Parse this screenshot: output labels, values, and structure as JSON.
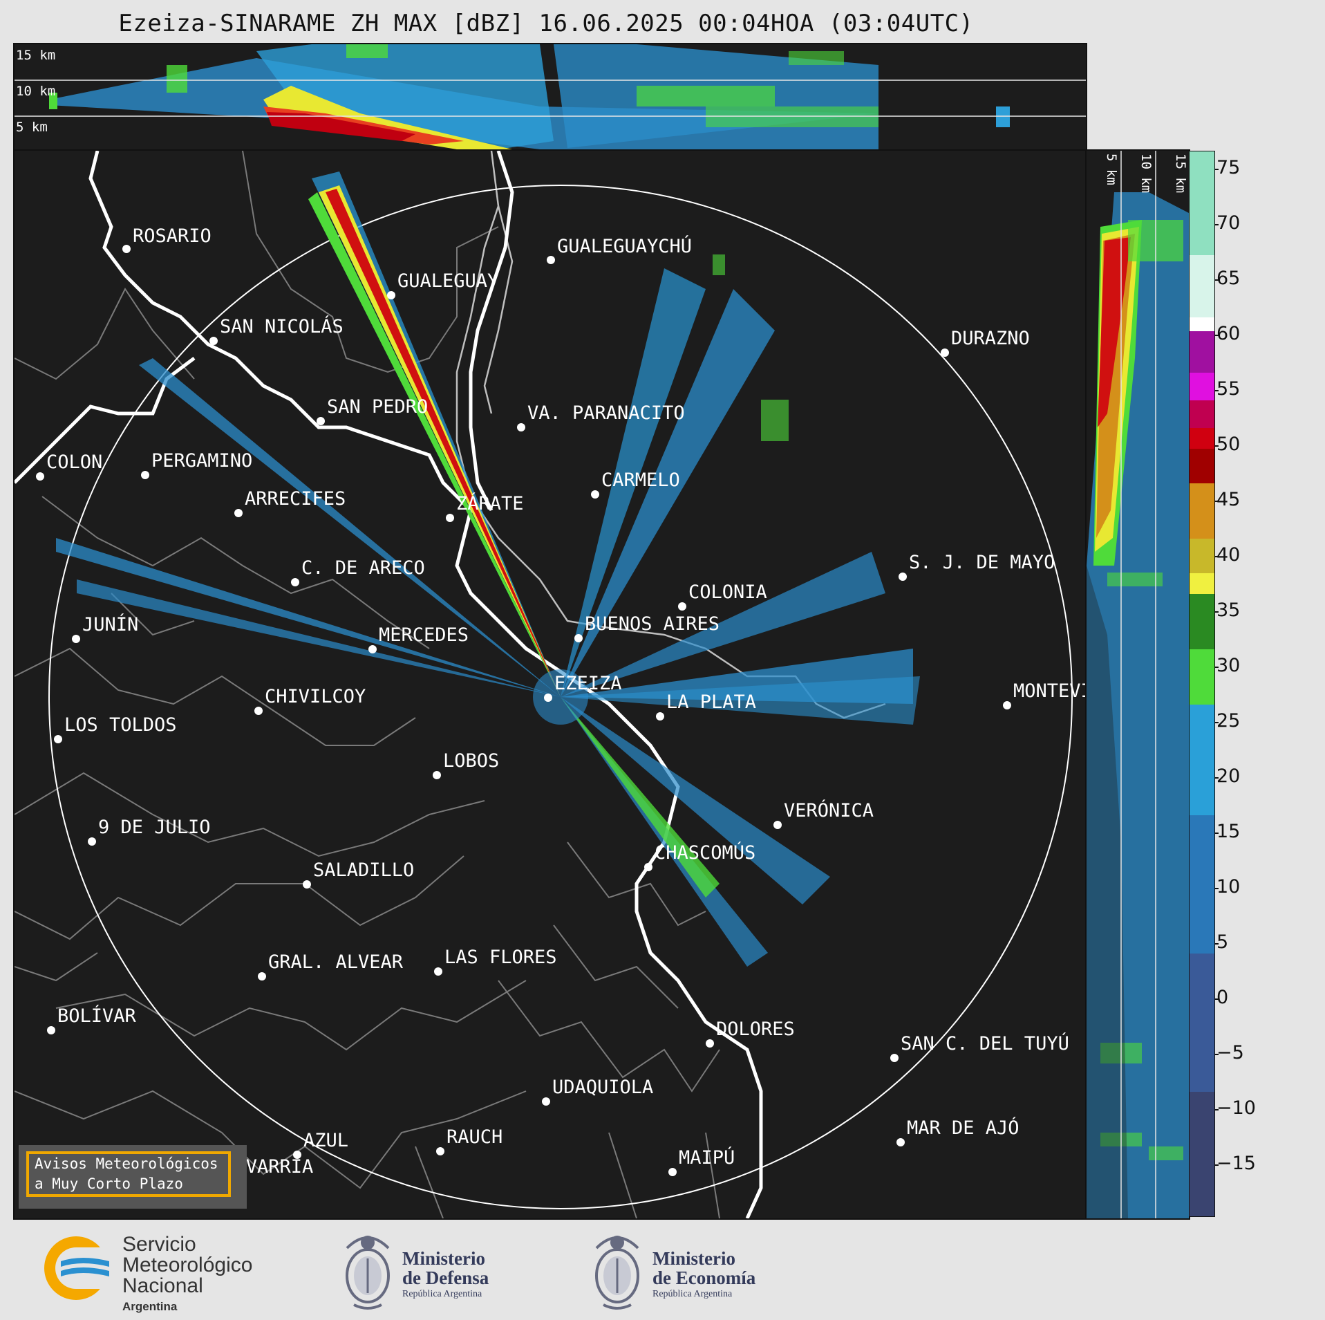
{
  "title": "Ezeiza-SINARAME ZH MAX [dBZ] 16.06.2025 00:04HOA (03:04UTC)",
  "top_panel": {
    "heights": [
      "15 km",
      "10 km",
      "5 km"
    ]
  },
  "side_panel": {
    "heights": [
      "5 km",
      "10 km",
      "15 km"
    ]
  },
  "colorbar": {
    "ticks": [
      "75",
      "70",
      "65",
      "60",
      "55",
      "50",
      "45",
      "40",
      "35",
      "30",
      "25",
      "20",
      "15",
      "10",
      "5",
      "0",
      "−5",
      "−10",
      "−15"
    ],
    "units": "dBZ"
  },
  "cities": [
    {
      "name": "ROSARIO"
    },
    {
      "name": "GUALEGUAYCHÚ"
    },
    {
      "name": "GUALEGUAY"
    },
    {
      "name": "SAN NICOLÁS"
    },
    {
      "name": "DURAZNO"
    },
    {
      "name": "SAN PEDRO"
    },
    {
      "name": "VA. PARANACITO"
    },
    {
      "name": "COLON"
    },
    {
      "name": "PERGAMINO"
    },
    {
      "name": "CARMELO"
    },
    {
      "name": "ARRECIFES"
    },
    {
      "name": "ZÁRATE"
    },
    {
      "name": "S. J. DE MAYO"
    },
    {
      "name": "C. DE ARECO"
    },
    {
      "name": "COLONIA"
    },
    {
      "name": "JUNÍN"
    },
    {
      "name": "BUENOS AIRES"
    },
    {
      "name": "MERCEDES"
    },
    {
      "name": "EZEIZA"
    },
    {
      "name": "MONTEVIDEO"
    },
    {
      "name": "CHIVILCOY"
    },
    {
      "name": "LA PLATA"
    },
    {
      "name": "LOS TOLDOS"
    },
    {
      "name": "LOBOS"
    },
    {
      "name": "VERÓNICA"
    },
    {
      "name": "9 DE JULIO"
    },
    {
      "name": "CHASCOMÚS"
    },
    {
      "name": "SALADILLO"
    },
    {
      "name": "GRAL. ALVEAR"
    },
    {
      "name": "LAS FLORES"
    },
    {
      "name": "BOLÍVAR"
    },
    {
      "name": "DOLORES"
    },
    {
      "name": "SAN C. DEL TUYÚ"
    },
    {
      "name": "UDAQUIOLA"
    },
    {
      "name": "MAR DE AJÓ"
    },
    {
      "name": "RAUCH"
    },
    {
      "name": "AZUL"
    },
    {
      "name": "OLAVARRÍA"
    },
    {
      "name": "MAIPÚ"
    }
  ],
  "warning_box": {
    "line1": "Avisos Meteorológicos",
    "line2": "a Muy Corto Plazo"
  },
  "footer": {
    "smn": {
      "line1": "Servicio",
      "line2": "Meteorológico",
      "line3": "Nacional",
      "line4": "Argentina"
    },
    "defensa": {
      "line1": "Ministerio",
      "line2": "de Defensa",
      "line3": "República Argentina"
    },
    "economia": {
      "line1": "Ministerio",
      "line2": "de Economía",
      "line3": "República Argentina"
    }
  },
  "colors": {
    "background": "#1c1c1c",
    "accent_border": "#f0a800",
    "coast": "#ffffff",
    "borders": "#808080"
  }
}
